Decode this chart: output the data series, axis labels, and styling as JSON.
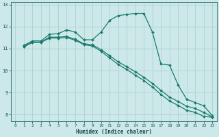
{
  "xlabel": "Humidex (Indice chaleur)",
  "bg_color": "#cce8e8",
  "grid_color": "#aacccc",
  "line_color": "#1a7a6e",
  "xlim": [
    -0.5,
    23.5
  ],
  "ylim": [
    7.7,
    13.1
  ],
  "xticks": [
    0,
    1,
    2,
    3,
    4,
    5,
    6,
    7,
    8,
    9,
    10,
    11,
    12,
    13,
    14,
    15,
    16,
    17,
    18,
    19,
    20,
    21,
    22,
    23
  ],
  "yticks": [
    8,
    9,
    10,
    11,
    12,
    13
  ],
  "line1_x": [
    1,
    2,
    3,
    4,
    5,
    6,
    7,
    8,
    9,
    10,
    11,
    12,
    13,
    14,
    15,
    16,
    17,
    18,
    19,
    20,
    21,
    22,
    23
  ],
  "line1_y": [
    11.15,
    11.35,
    11.35,
    11.65,
    11.68,
    11.85,
    11.75,
    11.4,
    11.4,
    11.75,
    12.28,
    12.5,
    12.55,
    12.6,
    12.6,
    11.75,
    10.3,
    10.25,
    9.35,
    8.7,
    8.55,
    8.4,
    7.95
  ],
  "line2_x": [
    1,
    2,
    3,
    4,
    5,
    6,
    7,
    8,
    9,
    10,
    11,
    12,
    13,
    14,
    15,
    16,
    17,
    18,
    19,
    20,
    21,
    22,
    23
  ],
  "line2_y": [
    11.1,
    11.3,
    11.3,
    11.52,
    11.52,
    11.55,
    11.42,
    11.22,
    11.18,
    10.95,
    10.68,
    10.4,
    10.18,
    9.95,
    9.7,
    9.42,
    9.1,
    8.8,
    8.6,
    8.38,
    8.28,
    8.1,
    7.9
  ],
  "line3_x": [
    1,
    2,
    3,
    4,
    5,
    6,
    7,
    8,
    9,
    10,
    11,
    12,
    13,
    14,
    15,
    16,
    17,
    18,
    19,
    20,
    21,
    22,
    23
  ],
  "line3_y": [
    11.08,
    11.28,
    11.28,
    11.48,
    11.48,
    11.5,
    11.38,
    11.18,
    11.12,
    10.88,
    10.58,
    10.28,
    10.05,
    9.8,
    9.55,
    9.25,
    8.92,
    8.62,
    8.42,
    8.2,
    8.1,
    7.92,
    7.88
  ]
}
